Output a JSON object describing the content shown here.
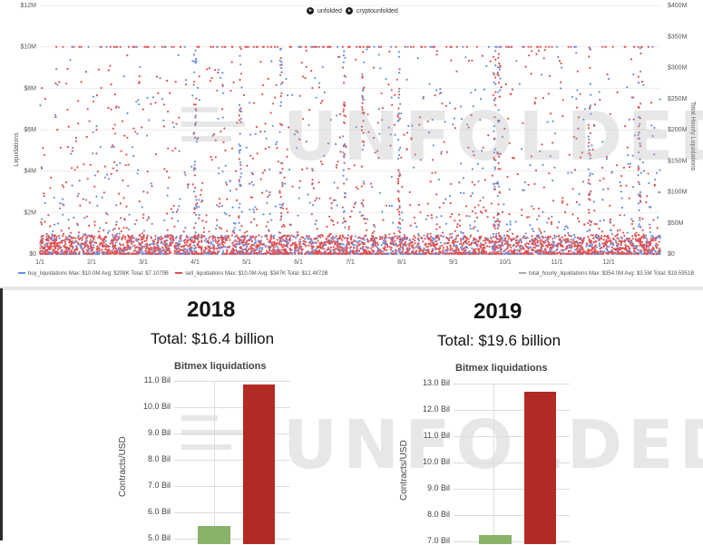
{
  "top_chart": {
    "brand_unfolded": "unfolded",
    "brand_handle": "cryptounfolded",
    "left_ylabel": "Liquidations",
    "right_ylabel": "Total Hourly Liquidations",
    "left_ticks": [
      "$12M",
      "$10M",
      "$8M",
      "$6M",
      "$4M",
      "$2M",
      "$0"
    ],
    "right_ticks": [
      "$400M",
      "$350M",
      "$300M",
      "$250M",
      "$200M",
      "$150M",
      "$100M",
      "$50M",
      "$0"
    ],
    "x_ticks": [
      "1/1",
      "2/1",
      "3/1",
      "4/1",
      "5/1",
      "6/1",
      "7/1",
      "8/1",
      "9/1",
      "10/1",
      "11/1",
      "12/1"
    ],
    "legend_buy": "buy_liquidations   Max: $10.0M   Avg: $208K   Total: $7.1079B",
    "legend_sell": "sell_liquidations   Max: $10.0M   Avg: $347K   Total: $12.4872B",
    "legend_total": "total_hourly_liquidations   Max: $354.0M   Avg: $3.5M   Total: $19.5951B",
    "watermark": "UNFOLDED"
  },
  "panel_2018": {
    "year": "2018",
    "total": "Total: $16.4 billion",
    "subtitle": "Bitmex liquidations",
    "ylabel": "Contracts/USD",
    "ticks": [
      "11.0 Bil",
      "10.0 Bil",
      "9.0 Bil",
      "8.0 Bil",
      "7.0 Bil",
      "6.0 Bil",
      "5.0 Bil"
    ]
  },
  "panel_2019": {
    "year": "2019",
    "total": "Total: $19.6 billion",
    "subtitle": "Bitmex liquidations",
    "ylabel": "Contracts/USD",
    "ticks": [
      "13.0 Bil",
      "12.0 Bil",
      "11.0 Bil",
      "10.0 Bil",
      "9.0 Bil",
      "8.0 Bil",
      "7.0 Bil"
    ]
  },
  "colors": {
    "buy": "#6a8fe0",
    "sell": "#e05252",
    "green_bar": "#8ab26b",
    "red_bar": "#b22a24"
  },
  "chart_data": [
    {
      "type": "scatter",
      "title": "",
      "xlabel": "",
      "ylabel": "Liquidations",
      "ylim": [
        0,
        12000000
      ],
      "y2label": "Total Hourly Liquidations",
      "y2lim": [
        0,
        400000000
      ],
      "x_range": [
        "1/1",
        "12/31"
      ],
      "series": [
        {
          "name": "buy_liquidations",
          "max": 10000000,
          "avg": 208000,
          "total": 7107900000
        },
        {
          "name": "sell_liquidations",
          "max": 10000000,
          "avg": 347000,
          "total": 12487200000
        },
        {
          "name": "total_hourly_liquidations",
          "max": 354000000,
          "avg": 3500000,
          "total": 19595100000
        }
      ],
      "grid": true,
      "legend": "bottom"
    },
    {
      "type": "bar",
      "title": "Bitmex liquidations",
      "ylabel": "Contracts/USD",
      "ylim": [
        5.0,
        11.0
      ],
      "values": [
        5.5,
        10.85
      ],
      "colors": [
        "#8ab26b",
        "#b22a24"
      ]
    },
    {
      "type": "bar",
      "title": "Bitmex liquidations",
      "ylabel": "Contracts/USD",
      "ylim": [
        7.0,
        13.0
      ],
      "values": [
        7.25,
        12.7
      ],
      "colors": [
        "#8ab26b",
        "#b22a24"
      ]
    }
  ]
}
